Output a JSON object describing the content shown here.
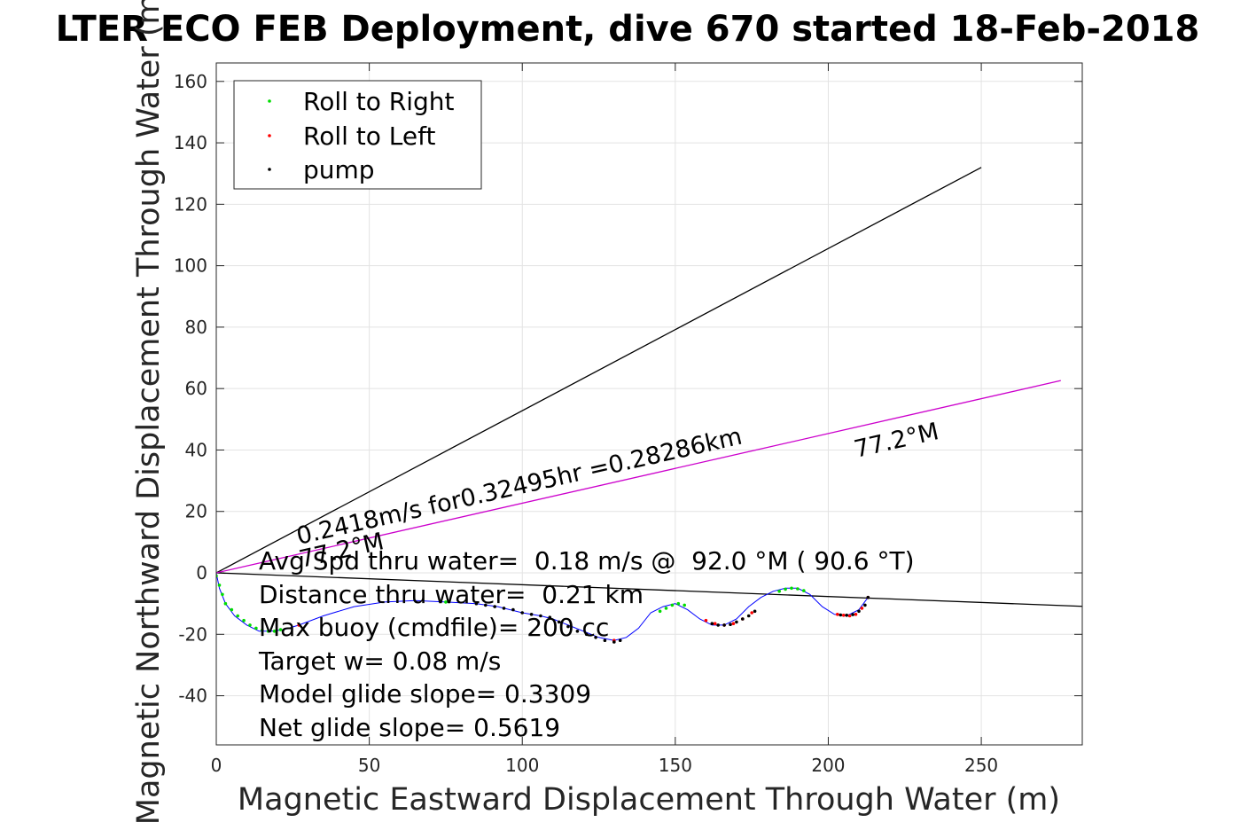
{
  "chart_data": {
    "type": "line",
    "title": "LTER ECO FEB Deployment, dive 670 started 18-Feb-2018",
    "xlabel": "Magnetic Eastward Displacement Through Water (m)",
    "ylabel": "Magnetic Northward Displacement Through Water (m)",
    "xlim": [
      0,
      283
    ],
    "ylim": [
      -56,
      166
    ],
    "xticks": [
      0,
      50,
      100,
      150,
      200,
      250
    ],
    "yticks": [
      -40,
      -20,
      0,
      20,
      40,
      60,
      80,
      100,
      120,
      140,
      160
    ],
    "grid": true,
    "legend_position": "top-left",
    "legend": [
      {
        "label": "Roll to Right",
        "color": "#00dd00"
      },
      {
        "label": "Roll to Left",
        "color": "#ff0000"
      },
      {
        "label": "pump",
        "color": "#000000"
      }
    ],
    "track": {
      "color": "#0000ff",
      "x": [
        0,
        1,
        3,
        6,
        10,
        14,
        18,
        22,
        27,
        35,
        45,
        55,
        65,
        75,
        85,
        92,
        100,
        106,
        110,
        115,
        120,
        125,
        130,
        134,
        138,
        142,
        146,
        150,
        154,
        158,
        162,
        166,
        170,
        174,
        178,
        182,
        186,
        190,
        194,
        198,
        202,
        206,
        210,
        213
      ],
      "y": [
        0,
        -5,
        -10,
        -14,
        -17,
        -19,
        -19,
        -18.5,
        -17,
        -14,
        -11,
        -9.5,
        -9,
        -9.5,
        -10,
        -11,
        -13,
        -14,
        -15,
        -17,
        -19,
        -21,
        -22,
        -21,
        -18,
        -13,
        -11,
        -10,
        -12,
        -15,
        -17,
        -17,
        -15,
        -11,
        -8,
        -6,
        -5,
        -5,
        -7,
        -11,
        -13.5,
        -14,
        -12,
        -8
      ]
    },
    "series": [
      {
        "name": "Roll to Right",
        "color": "#00dd00",
        "x": [
          0,
          1,
          2,
          3,
          5,
          7,
          9,
          11,
          13,
          15,
          17,
          19,
          21,
          75,
          145,
          147,
          149,
          151,
          153,
          184,
          186,
          188,
          190,
          192
        ],
        "y": [
          -1,
          -4,
          -7,
          -10,
          -12,
          -14,
          -15.5,
          -17,
          -18,
          -18.7,
          -19,
          -19,
          -18.5,
          -9.5,
          -12.5,
          -11.5,
          -10.5,
          -10,
          -10.5,
          -6,
          -5.3,
          -5,
          -5.2,
          -5.8
        ]
      },
      {
        "name": "Roll to Left",
        "color": "#ff0000",
        "x": [
          27,
          130,
          160,
          163,
          166,
          169,
          172,
          175,
          203,
          205,
          207,
          209,
          211,
          213
        ],
        "y": [
          -17,
          -22,
          -15.5,
          -16.5,
          -17,
          -16.5,
          -15,
          -13,
          -13.5,
          -13.8,
          -14,
          -13.5,
          -11.5,
          -8
        ]
      },
      {
        "name": "pump",
        "color": "#000000",
        "x": [
          85,
          88,
          91,
          94,
          97,
          100,
          103,
          106,
          109,
          112,
          115,
          118,
          121,
          124,
          127,
          130,
          132,
          162,
          164,
          166,
          168,
          170,
          172,
          174,
          176,
          204,
          206,
          208,
          210,
          212,
          213
        ],
        "y": [
          -10,
          -10.5,
          -11,
          -11.5,
          -12,
          -13,
          -13.5,
          -14,
          -14.5,
          -16,
          -17.5,
          -19,
          -20,
          -21,
          -22,
          -22.5,
          -22,
          -16.5,
          -17,
          -17,
          -16.8,
          -16,
          -15,
          -14,
          -12.5,
          -13.7,
          -13.8,
          -13.6,
          -12.5,
          -10.5,
          -8
        ]
      }
    ],
    "vectors": [
      {
        "name": "current",
        "color": "#000000",
        "x": [
          0,
          250
        ],
        "y": [
          0,
          132
        ]
      },
      {
        "name": "heading",
        "color": "#000000",
        "x": [
          0,
          283
        ],
        "y": [
          0,
          -10.9
        ]
      },
      {
        "name": "gliding",
        "color": "#cc00cc",
        "x": [
          0,
          276
        ],
        "y": [
          0,
          62.6
        ]
      }
    ],
    "annotations": {
      "speed": "0.2418m/s for0.32495hr =0.28286km",
      "angle_1": "77.2°M",
      "angle_2": "77.2°M"
    },
    "stats": [
      "Avg Spd thru water=  0.18 m/s @  92.0 °M ( 90.6 °T)",
      "Distance thru water=  0.21 km",
      "Max buoy (cmdfile)= 200 cc",
      "Target w= 0.08 m/s",
      "Model glide slope= 0.3309",
      "Net glide slope= 0.5619"
    ]
  }
}
